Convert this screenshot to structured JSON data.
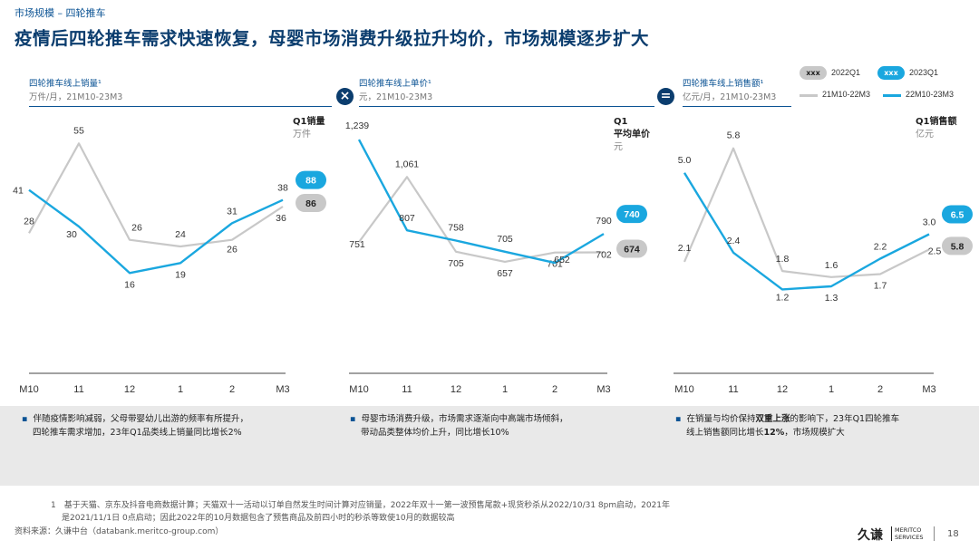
{
  "header": {
    "breadcrumb": "市场规模 – 四轮推车",
    "title": "疫情后四轮推车需求快速恢复，母婴市场消费升级拉升均价，市场规模逐步扩大"
  },
  "legend": {
    "pill_2022_label": "xxx",
    "pill_2022_text": "2022Q1",
    "pill_2023_label": "xxx",
    "pill_2023_text": "2023Q1",
    "line_prev_text": "21M10-22M3",
    "line_curr_text": "22M10-23M3"
  },
  "colors": {
    "prev": "#c8c8c8",
    "curr": "#1aa7df",
    "navy": "#0b3d6e"
  },
  "operators": {
    "times": "×",
    "equals": "="
  },
  "panels": [
    {
      "title": "四轮推车线上销量¹",
      "unit": "万件/月，21M10-23M3",
      "q1_label": "Q1销量",
      "q1_unit": "万件"
    },
    {
      "title": "四轮推车线上单价¹",
      "unit": "元，21M10-23M3",
      "q1_label": "Q1",
      "q1_label2": "平均单价",
      "q1_unit": "元"
    },
    {
      "title": "四轮推车线上销售额¹",
      "unit": "亿元/月，21M10-23M3",
      "q1_label": "Q1销售额",
      "q1_unit": "亿元"
    }
  ],
  "chart_data": [
    {
      "type": "line",
      "title": "四轮推车线上销量",
      "categories": [
        "M10",
        "11",
        "12",
        "1",
        "2",
        "M3"
      ],
      "ylim": [
        0,
        60
      ],
      "series": [
        {
          "name": "21M10-22M3",
          "values": [
            28,
            55,
            26,
            24,
            26,
            36
          ],
          "labels": [
            "28",
            "55",
            "26",
            "24",
            "26",
            "36"
          ]
        },
        {
          "name": "22M10-23M3",
          "values": [
            41,
            30,
            16,
            19,
            31,
            38
          ],
          "labels": [
            "41",
            "30",
            "16",
            "19",
            "31",
            "38"
          ]
        }
      ],
      "q1": {
        "2022Q1": "86",
        "2023Q1": "88"
      }
    },
    {
      "type": "line",
      "title": "四轮推车线上单价",
      "categories": [
        "M10",
        "11",
        "12",
        "1",
        "2",
        "M3"
      ],
      "ylim": [
        350,
        1300
      ],
      "series": [
        {
          "name": "21M10-22M3",
          "values": [
            751,
            1061,
            705,
            657,
            701,
            702
          ],
          "labels": [
            "751",
            "1,061",
            "705",
            "657",
            "701",
            "702"
          ]
        },
        {
          "name": "22M10-23M3",
          "values": [
            1239,
            807,
            758,
            705,
            652,
            790
          ],
          "labels": [
            "1,239",
            "807",
            "758",
            "705",
            "652",
            "790"
          ]
        }
      ],
      "q1": {
        "2022Q1": "674",
        "2023Q1": "740"
      }
    },
    {
      "type": "line",
      "title": "四轮推车线上销售额",
      "categories": [
        "M10",
        "11",
        "12",
        "1",
        "2",
        "M3"
      ],
      "ylim": [
        0,
        6.5
      ],
      "series": [
        {
          "name": "21M10-22M3",
          "values": [
            2.1,
            5.8,
            1.8,
            1.6,
            1.7,
            2.5
          ],
          "labels": [
            "2.1",
            "5.8",
            "1.8",
            "1.6",
            "1.7",
            "2.5"
          ]
        },
        {
          "name": "22M10-23M3",
          "values": [
            5.0,
            2.4,
            1.2,
            1.3,
            2.2,
            3.0
          ],
          "labels": [
            "5.0",
            "2.4",
            "1.2",
            "1.3",
            "2.2",
            "3.0"
          ]
        }
      ],
      "q1": {
        "2022Q1": "5.8",
        "2023Q1": "6.5"
      }
    }
  ],
  "bullets": [
    {
      "line1": "伴随疫情影响减弱，父母带婴幼儿出游的频率有所提升，",
      "line2": "四轮推车需求增加，23年Q1品类线上销量同比增长2%"
    },
    {
      "line1": "母婴市场消费升级，市场需求逐渐向中高端市场倾斜，",
      "line2": "带动品类整体均价上升，同比增长10%"
    },
    {
      "line1_pre": "在销量与均价保持",
      "line1_bold": "双重上涨",
      "line1_post": "的影响下，23年Q1四轮推车",
      "line2_pre": "线上销售额同比增长",
      "line2_bold": "12%",
      "line2_post": "，市场规模扩大"
    }
  ],
  "footnotes": {
    "n1": "1　基于天猫、京东及抖音电商数据计算；天猫双十一活动以订单自然发生时间计算对应销量，2022年双十一第一波预售尾款+现货秒杀从2022/10/31 8pm启动，2021年",
    "n1b": "是2021/11/1日 0点启动；因此2022年的10月数据包含了预售商品及前四小时的秒杀等致使10月的数据较高",
    "source": "资料来源：久谦中台（databank.meritco-group.com）"
  },
  "logo": {
    "main": "久谦",
    "sub1": "MERITCO",
    "sub2": "SERVICES"
  },
  "page_number": "18"
}
